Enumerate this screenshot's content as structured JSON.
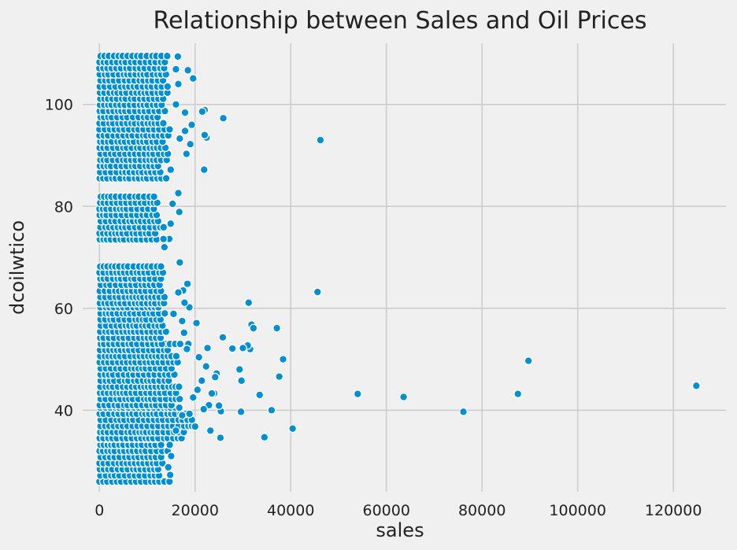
{
  "chart_data": {
    "type": "scatter",
    "title": "Relationship between Sales and Oil Prices",
    "xlabel": "sales",
    "ylabel": "dcoilwtico",
    "xlim": [
      -3500,
      131000
    ],
    "ylim": [
      24,
      112
    ],
    "xticks": [
      0,
      20000,
      40000,
      60000,
      80000,
      100000,
      120000
    ],
    "yticks": [
      40,
      60,
      80,
      100
    ],
    "grid": true,
    "color": "#008fd5",
    "dense_bands": [
      {
        "y_min": 26,
        "y_max": 41,
        "x_min": 0,
        "x_max": 15000,
        "step": 1.2
      },
      {
        "y_min": 34.5,
        "y_max": 41,
        "x_min": 0,
        "x_max": 21000,
        "step": 1.2
      },
      {
        "y_min": 41,
        "y_max": 53,
        "x_min": 0,
        "x_max": 18000,
        "step": 1.2
      },
      {
        "y_min": 53,
        "y_max": 61,
        "x_min": 0,
        "x_max": 15000,
        "step": 1.2
      },
      {
        "y_min": 61,
        "y_max": 69,
        "x_min": 0,
        "x_max": 14000,
        "step": 1.2
      },
      {
        "y_min": 73.5,
        "y_max": 83,
        "x_min": 0,
        "x_max": 14000,
        "step": 1.2
      },
      {
        "y_min": 85.5,
        "y_max": 110.5,
        "x_min": 0,
        "x_max": 15000,
        "step": 1.2
      }
    ],
    "points": [
      {
        "x": 124800,
        "y": 44.8
      },
      {
        "x": 89700,
        "y": 49.7
      },
      {
        "x": 87500,
        "y": 43.2
      },
      {
        "x": 76100,
        "y": 39.7
      },
      {
        "x": 63600,
        "y": 42.6
      },
      {
        "x": 54000,
        "y": 43.2
      },
      {
        "x": 46200,
        "y": 93.0
      },
      {
        "x": 45600,
        "y": 63.2
      },
      {
        "x": 40400,
        "y": 36.4
      },
      {
        "x": 38400,
        "y": 50.0
      },
      {
        "x": 37600,
        "y": 46.6
      },
      {
        "x": 37100,
        "y": 56.1
      },
      {
        "x": 36000,
        "y": 40.0
      },
      {
        "x": 34500,
        "y": 34.7
      },
      {
        "x": 33500,
        "y": 43.0
      },
      {
        "x": 31800,
        "y": 56.8
      },
      {
        "x": 32200,
        "y": 56.1
      },
      {
        "x": 31200,
        "y": 61.1
      },
      {
        "x": 31500,
        "y": 52.0
      },
      {
        "x": 31000,
        "y": 52.7
      },
      {
        "x": 30000,
        "y": 52.2
      },
      {
        "x": 29700,
        "y": 45.8
      },
      {
        "x": 29300,
        "y": 48.0
      },
      {
        "x": 29600,
        "y": 39.7
      },
      {
        "x": 27800,
        "y": 52.1
      },
      {
        "x": 25900,
        "y": 97.3
      },
      {
        "x": 25300,
        "y": 34.6
      },
      {
        "x": 25800,
        "y": 54.3
      },
      {
        "x": 25400,
        "y": 39.8
      },
      {
        "x": 25000,
        "y": 40.9
      },
      {
        "x": 24500,
        "y": 47.2
      },
      {
        "x": 24200,
        "y": 46.5
      },
      {
        "x": 24000,
        "y": 43.3
      },
      {
        "x": 23500,
        "y": 43.3
      },
      {
        "x": 22900,
        "y": 41.0
      },
      {
        "x": 22000,
        "y": 98.9
      },
      {
        "x": 21500,
        "y": 98.6
      },
      {
        "x": 22400,
        "y": 93.5
      },
      {
        "x": 22000,
        "y": 94.0
      },
      {
        "x": 21900,
        "y": 87.2
      },
      {
        "x": 19600,
        "y": 105.1
      },
      {
        "x": 18500,
        "y": 106.7
      },
      {
        "x": 17900,
        "y": 98.4
      },
      {
        "x": 16400,
        "y": 109.4
      },
      {
        "x": 16000,
        "y": 106.9
      },
      {
        "x": 19000,
        "y": 92.2
      },
      {
        "x": 19300,
        "y": 96.0
      },
      {
        "x": 18200,
        "y": 90.3
      },
      {
        "x": 17900,
        "y": 94.8
      },
      {
        "x": 18800,
        "y": 60.2
      },
      {
        "x": 17500,
        "y": 63.5
      },
      {
        "x": 18400,
        "y": 64.8
      },
      {
        "x": 17800,
        "y": 61.1
      },
      {
        "x": 16500,
        "y": 82.6
      },
      {
        "x": 16700,
        "y": 78.9
      },
      {
        "x": 16800,
        "y": 69.0
      },
      {
        "x": 16500,
        "y": 63.1
      },
      {
        "x": 18600,
        "y": 53.0
      },
      {
        "x": 18300,
        "y": 52.0
      },
      {
        "x": 17300,
        "y": 57.5
      },
      {
        "x": 17700,
        "y": 55.2
      },
      {
        "x": 15500,
        "y": 58.9
      },
      {
        "x": 20300,
        "y": 57.1
      },
      {
        "x": 22600,
        "y": 52.2
      },
      {
        "x": 20800,
        "y": 50.4
      },
      {
        "x": 22300,
        "y": 48.6
      },
      {
        "x": 21400,
        "y": 45.8
      },
      {
        "x": 20500,
        "y": 44.0
      },
      {
        "x": 19600,
        "y": 42.5
      },
      {
        "x": 21800,
        "y": 40.2
      },
      {
        "x": 23200,
        "y": 36.0
      },
      {
        "x": 20000,
        "y": 36.8
      },
      {
        "x": 17300,
        "y": 39.0
      },
      {
        "x": 16000,
        "y": 36.0
      },
      {
        "x": 14800,
        "y": 27.3
      },
      {
        "x": 14400,
        "y": 28.8
      },
      {
        "x": 15000,
        "y": 31.0
      },
      {
        "x": 14700,
        "y": 33.2
      },
      {
        "x": 14600,
        "y": 73.6
      },
      {
        "x": 15300,
        "y": 80.5
      },
      {
        "x": 14900,
        "y": 76.6
      },
      {
        "x": 14900,
        "y": 87.2
      },
      {
        "x": 13400,
        "y": 73.6
      },
      {
        "x": 13600,
        "y": 72.0
      },
      {
        "x": 16800,
        "y": 93.3
      },
      {
        "x": 16000,
        "y": 100.0
      },
      {
        "x": 16500,
        "y": 104.0
      }
    ]
  }
}
